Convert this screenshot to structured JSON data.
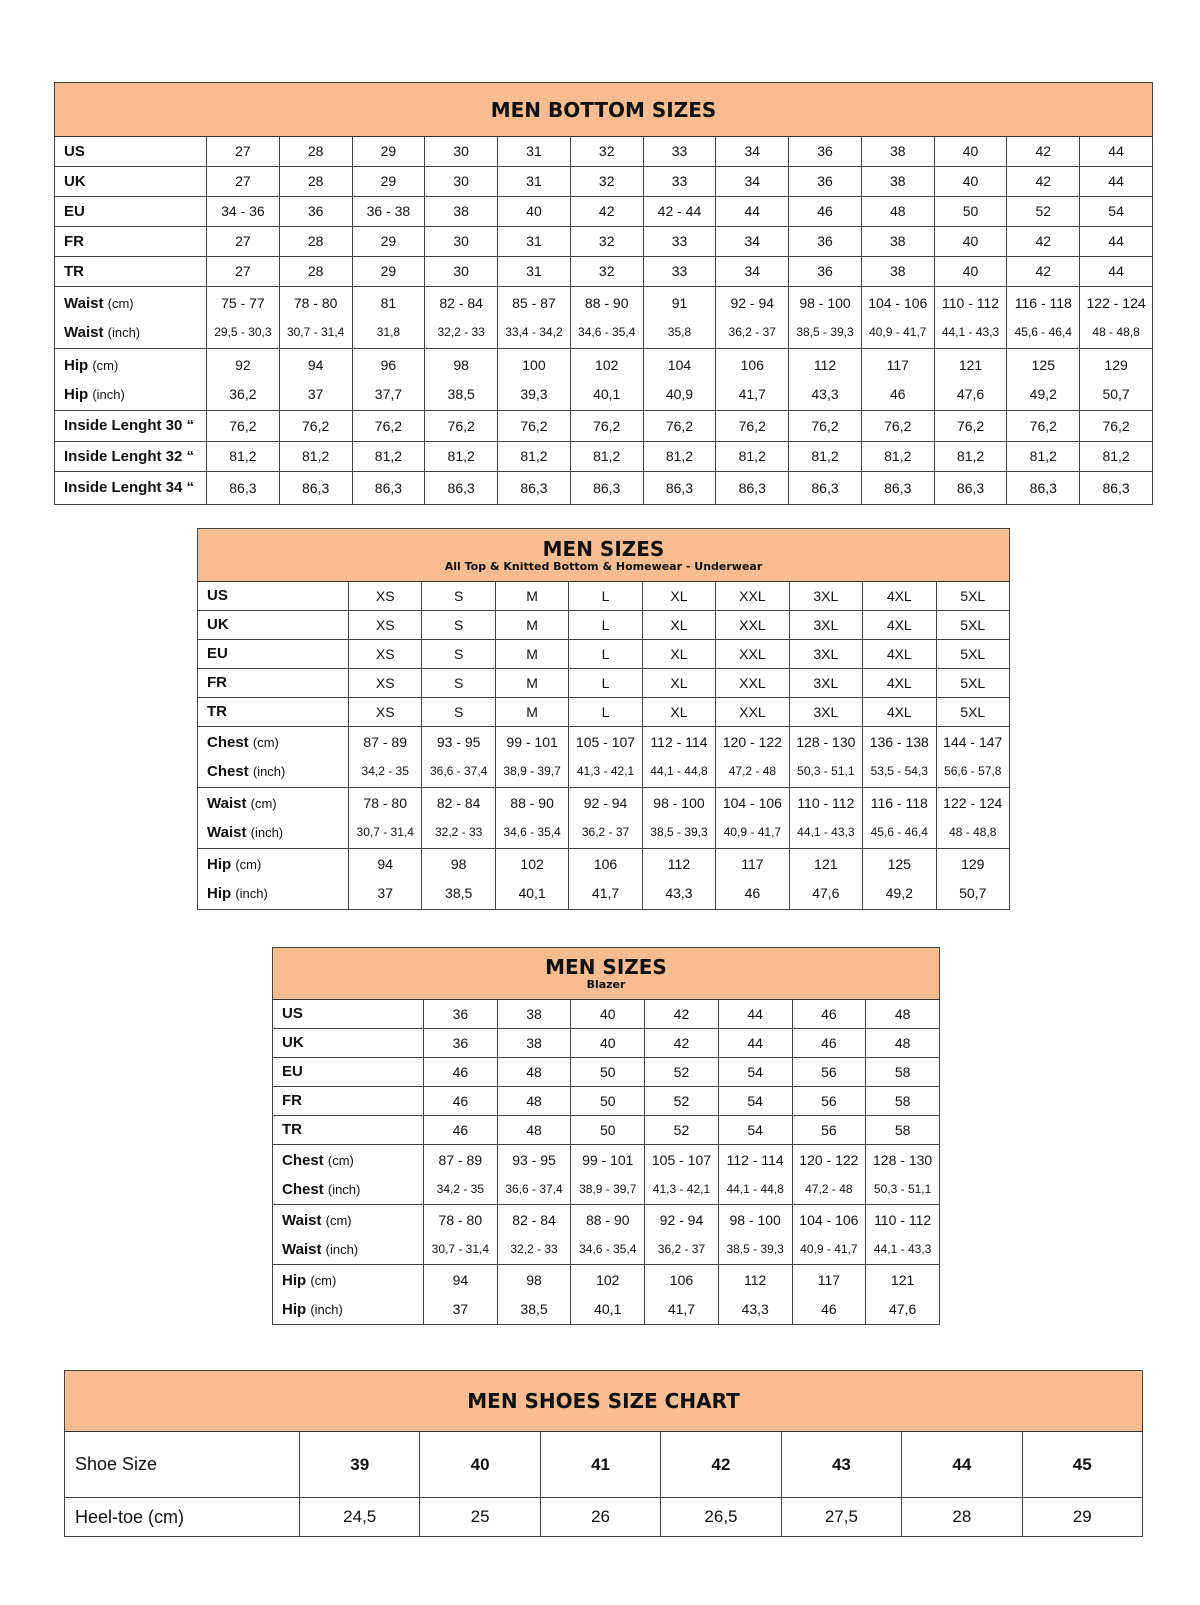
{
  "header_color": "#f7bd91",
  "tables": [
    {
      "id": "men-bottom-sizes",
      "title": "MEN BOTTOM SIZES",
      "subtitle": "",
      "groups": [
        [
          {
            "label": "US",
            "unit": "",
            "values": [
              "27",
              "28",
              "29",
              "30",
              "31",
              "32",
              "33",
              "34",
              "36",
              "38",
              "40",
              "42",
              "44"
            ]
          }
        ],
        [
          {
            "label": "UK",
            "unit": "",
            "values": [
              "27",
              "28",
              "29",
              "30",
              "31",
              "32",
              "33",
              "34",
              "36",
              "38",
              "40",
              "42",
              "44"
            ]
          }
        ],
        [
          {
            "label": "EU",
            "unit": "",
            "values": [
              "34 - 36",
              "36",
              "36 - 38",
              "38",
              "40",
              "42",
              "42 - 44",
              "44",
              "46",
              "48",
              "50",
              "52",
              "54"
            ]
          }
        ],
        [
          {
            "label": "FR",
            "unit": "",
            "values": [
              "27",
              "28",
              "29",
              "30",
              "31",
              "32",
              "33",
              "34",
              "36",
              "38",
              "40",
              "42",
              "44"
            ]
          }
        ],
        [
          {
            "label": "TR",
            "unit": "",
            "values": [
              "27",
              "28",
              "29",
              "30",
              "31",
              "32",
              "33",
              "34",
              "36",
              "38",
              "40",
              "42",
              "44"
            ]
          }
        ],
        [
          {
            "label": "Waist",
            "unit": "(cm)",
            "values": [
              "75 - 77",
              "78 - 80",
              "81",
              "82 - 84",
              "85 - 87",
              "88 - 90",
              "91",
              "92 - 94",
              "98 - 100",
              "104 - 106",
              "110 - 112",
              "116 - 118",
              "122 - 124"
            ]
          },
          {
            "label": "Waist",
            "unit": "(inch)",
            "small": true,
            "values": [
              "29,5 - 30,3",
              "30,7 - 31,4",
              "31,8",
              "32,2 - 33",
              "33,4 - 34,2",
              "34,6 - 35,4",
              "35,8",
              "36,2 - 37",
              "38,5 - 39,3",
              "40,9 - 41,7",
              "44,1 - 43,3",
              "45,6 - 46,4",
              "48 - 48,8"
            ]
          }
        ],
        [
          {
            "label": "Hip",
            "unit": "(cm)",
            "values": [
              "92",
              "94",
              "96",
              "98",
              "100",
              "102",
              "104",
              "106",
              "112",
              "117",
              "121",
              "125",
              "129"
            ]
          },
          {
            "label": "Hip",
            "unit": "(inch)",
            "values": [
              "36,2",
              "37",
              "37,7",
              "38,5",
              "39,3",
              "40,1",
              "40,9",
              "41,7",
              "43,3",
              "46",
              "47,6",
              "49,2",
              "50,7"
            ]
          }
        ],
        [
          {
            "label": "Inside Lenght 30 “",
            "unit": "",
            "il": true,
            "values": [
              "76,2",
              "76,2",
              "76,2",
              "76,2",
              "76,2",
              "76,2",
              "76,2",
              "76,2",
              "76,2",
              "76,2",
              "76,2",
              "76,2",
              "76,2"
            ]
          }
        ],
        [
          {
            "label": "Inside Lenght 32 “",
            "unit": "",
            "il": true,
            "values": [
              "81,2",
              "81,2",
              "81,2",
              "81,2",
              "81,2",
              "81,2",
              "81,2",
              "81,2",
              "81,2",
              "81,2",
              "81,2",
              "81,2",
              "81,2"
            ]
          }
        ],
        [
          {
            "label": "Inside Lenght 34 “",
            "unit": "",
            "il": true,
            "values": [
              "86,3",
              "86,3",
              "86,3",
              "86,3",
              "86,3",
              "86,3",
              "86,3",
              "86,3",
              "86,3",
              "86,3",
              "86,3",
              "86,3",
              "86,3"
            ]
          }
        ]
      ]
    },
    {
      "id": "men-sizes-tops",
      "title": "MEN SIZES",
      "subtitle": "All Top & Knitted Bottom & Homewear - Underwear",
      "groups": [
        [
          {
            "label": "US",
            "unit": "",
            "values": [
              "XS",
              "S",
              "M",
              "L",
              "XL",
              "XXL",
              "3XL",
              "4XL",
              "5XL"
            ]
          }
        ],
        [
          {
            "label": "UK",
            "unit": "",
            "values": [
              "XS",
              "S",
              "M",
              "L",
              "XL",
              "XXL",
              "3XL",
              "4XL",
              "5XL"
            ]
          }
        ],
        [
          {
            "label": "EU",
            "unit": "",
            "values": [
              "XS",
              "S",
              "M",
              "L",
              "XL",
              "XXL",
              "3XL",
              "4XL",
              "5XL"
            ]
          }
        ],
        [
          {
            "label": "FR",
            "unit": "",
            "values": [
              "XS",
              "S",
              "M",
              "L",
              "XL",
              "XXL",
              "3XL",
              "4XL",
              "5XL"
            ]
          }
        ],
        [
          {
            "label": "TR",
            "unit": "",
            "values": [
              "XS",
              "S",
              "M",
              "L",
              "XL",
              "XXL",
              "3XL",
              "4XL",
              "5XL"
            ]
          }
        ],
        [
          {
            "label": "Chest",
            "unit": "(cm)",
            "values": [
              "87 - 89",
              "93 - 95",
              "99 - 101",
              "105 - 107",
              "112 - 114",
              "120 - 122",
              "128 - 130",
              "136 - 138",
              "144 - 147"
            ]
          },
          {
            "label": "Chest",
            "unit": "(inch)",
            "small": true,
            "values": [
              "34,2 - 35",
              "36,6 - 37,4",
              "38,9 - 39,7",
              "41,3 - 42,1",
              "44,1 - 44,8",
              "47,2 - 48",
              "50,3 - 51,1",
              "53,5 - 54,3",
              "56,6 - 57,8"
            ]
          }
        ],
        [
          {
            "label": "Waist",
            "unit": "(cm)",
            "values": [
              "78 - 80",
              "82 - 84",
              "88 - 90",
              "92 - 94",
              "98 - 100",
              "104 - 106",
              "110 - 112",
              "116 - 118",
              "122 - 124"
            ]
          },
          {
            "label": "Waist",
            "unit": "(inch)",
            "small": true,
            "values": [
              "30,7 - 31,4",
              "32,2 - 33",
              "34,6 - 35,4",
              "36,2 - 37",
              "38,5 - 39,3",
              "40,9 - 41,7",
              "44,1 - 43,3",
              "45,6 - 46,4",
              "48 - 48,8"
            ]
          }
        ],
        [
          {
            "label": "Hip",
            "unit": "(cm)",
            "values": [
              "94",
              "98",
              "102",
              "106",
              "112",
              "117",
              "121",
              "125",
              "129"
            ]
          },
          {
            "label": "Hip",
            "unit": "(inch)",
            "values": [
              "37",
              "38,5",
              "40,1",
              "41,7",
              "43,3",
              "46",
              "47,6",
              "49,2",
              "50,7"
            ]
          }
        ]
      ]
    },
    {
      "id": "men-sizes-blazer",
      "title": "MEN SIZES",
      "subtitle": "Blazer",
      "groups": [
        [
          {
            "label": "US",
            "unit": "",
            "values": [
              "36",
              "38",
              "40",
              "42",
              "44",
              "46",
              "48"
            ]
          }
        ],
        [
          {
            "label": "UK",
            "unit": "",
            "values": [
              "36",
              "38",
              "40",
              "42",
              "44",
              "46",
              "48"
            ]
          }
        ],
        [
          {
            "label": "EU",
            "unit": "",
            "values": [
              "46",
              "48",
              "50",
              "52",
              "54",
              "56",
              "58"
            ]
          }
        ],
        [
          {
            "label": "FR",
            "unit": "",
            "values": [
              "46",
              "48",
              "50",
              "52",
              "54",
              "56",
              "58"
            ]
          }
        ],
        [
          {
            "label": "TR",
            "unit": "",
            "values": [
              "46",
              "48",
              "50",
              "52",
              "54",
              "56",
              "58"
            ]
          }
        ],
        [
          {
            "label": "Chest",
            "unit": "(cm)",
            "values": [
              "87 - 89",
              "93 - 95",
              "99 - 101",
              "105 - 107",
              "112 - 114",
              "120 - 122",
              "128 - 130"
            ]
          },
          {
            "label": "Chest",
            "unit": "(inch)",
            "small": true,
            "values": [
              "34,2 - 35",
              "36,6 - 37,4",
              "38,9 - 39,7",
              "41,3 - 42,1",
              "44,1 - 44,8",
              "47,2 - 48",
              "50,3 - 51,1"
            ]
          }
        ],
        [
          {
            "label": "Waist",
            "unit": "(cm)",
            "values": [
              "78 - 80",
              "82 - 84",
              "88 - 90",
              "92 - 94",
              "98 - 100",
              "104 - 106",
              "110 - 112"
            ]
          },
          {
            "label": "Waist",
            "unit": "(inch)",
            "small": true,
            "values": [
              "30,7 - 31,4",
              "32,2 - 33",
              "34,6 - 35,4",
              "36,2 - 37",
              "38,5 - 39,3",
              "40,9 - 41,7",
              "44,1 - 43,3"
            ]
          }
        ],
        [
          {
            "label": "Hip",
            "unit": "(cm)",
            "values": [
              "94",
              "98",
              "102",
              "106",
              "112",
              "117",
              "121"
            ]
          },
          {
            "label": "Hip",
            "unit": "(inch)",
            "values": [
              "37",
              "38,5",
              "40,1",
              "41,7",
              "43,3",
              "46",
              "47,6"
            ]
          }
        ]
      ]
    },
    {
      "id": "men-shoes-size-chart",
      "title": "MEN SHOES SIZE CHART",
      "subtitle": "",
      "groups": [
        [
          {
            "label": "Shoe Size",
            "unit": "",
            "values": [
              "39",
              "40",
              "41",
              "42",
              "43",
              "44",
              "45"
            ]
          }
        ],
        [
          {
            "label": "Heel-toe (cm)",
            "unit": "",
            "values": [
              "24,5",
              "25",
              "26",
              "26,5",
              "27,5",
              "28",
              "29"
            ]
          }
        ]
      ]
    }
  ]
}
